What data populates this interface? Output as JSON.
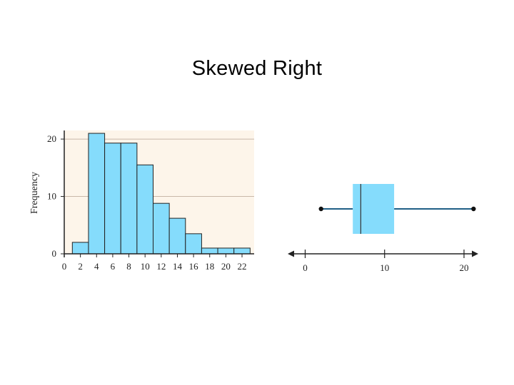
{
  "title": "Skewed Right",
  "chart_data": [
    {
      "type": "bar",
      "kind": "histogram",
      "title": "",
      "xlabel": "",
      "ylabel": "Frequency",
      "bin_edges": [
        0,
        2,
        4,
        6,
        8,
        10,
        12,
        14,
        16,
        18,
        20,
        22
      ],
      "bins": [
        {
          "from": 1,
          "to": 3,
          "value": 2
        },
        {
          "from": 3,
          "to": 5,
          "value": 21
        },
        {
          "from": 5,
          "to": 7,
          "value": 19.3
        },
        {
          "from": 7,
          "to": 9,
          "value": 19.3
        },
        {
          "from": 9,
          "to": 11,
          "value": 15.5
        },
        {
          "from": 11,
          "to": 13,
          "value": 8.8
        },
        {
          "from": 13,
          "to": 15,
          "value": 6.2
        },
        {
          "from": 15,
          "to": 17,
          "value": 3.5
        },
        {
          "from": 17,
          "to": 19,
          "value": 1
        },
        {
          "from": 19,
          "to": 21,
          "value": 1
        },
        {
          "from": 21,
          "to": 23,
          "value": 1
        }
      ],
      "xticks": [
        0,
        2,
        4,
        6,
        8,
        10,
        12,
        14,
        16,
        18,
        20,
        22
      ],
      "yticks": [
        0,
        10,
        20
      ],
      "xlim": [
        0,
        23.5
      ],
      "ylim": [
        0,
        21.5
      ],
      "grid": "horizontal",
      "colors": {
        "bar_fill": "#85dcfc",
        "bar_stroke": "#222222",
        "plot_background": "#fdf5ea",
        "gridline": "#c8b8a8"
      }
    },
    {
      "type": "box",
      "title": "",
      "xlabel": "",
      "ylabel": "",
      "min": 2,
      "q1": 6,
      "median": 7,
      "q3": 11.2,
      "max": 21.2,
      "xticks": [
        0,
        10,
        20
      ],
      "xlim": [
        -2.2,
        21.8
      ],
      "colors": {
        "box_fill": "#85dcfc",
        "whisker": "#1f5f86",
        "axis": "#222222"
      }
    }
  ]
}
